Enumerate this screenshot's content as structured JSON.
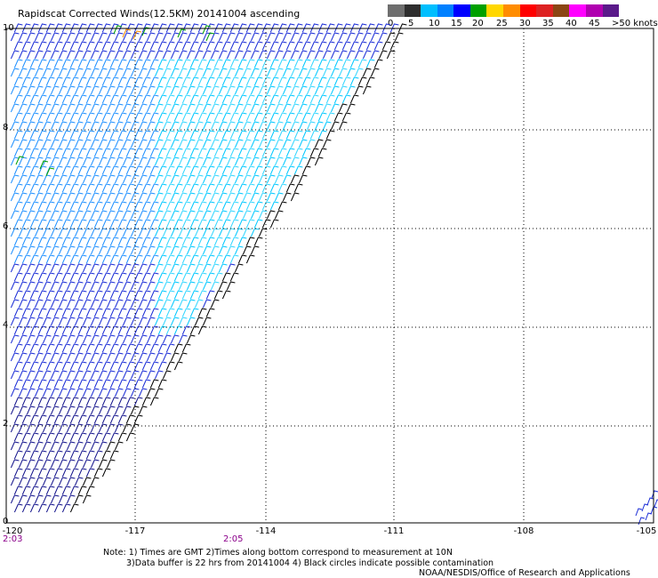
{
  "title": "Rapidscat Corrected Winds(12.5KM) 20141004 ascending",
  "legend": {
    "colors": [
      "#6e6e6e",
      "#2e2e2e",
      "#00bfff",
      "#0080ff",
      "#0000ff",
      "#00a000",
      "#ffd700",
      "#ff8c00",
      "#ff0000",
      "#dd2222",
      "#8b4513",
      "#ff00ff",
      "#b000b0",
      "#5a1a8a"
    ],
    "labels": [
      "0",
      "5",
      "10",
      "15",
      "20",
      "25",
      "30",
      "35",
      "40",
      "45",
      ">50 knots"
    ]
  },
  "x_ticks": [
    "-120",
    "-117",
    "-114",
    "-111",
    "-108",
    "-105"
  ],
  "y_ticks": [
    "10",
    "8",
    "6",
    "4",
    "2",
    "0"
  ],
  "times": [
    "2:03",
    "2:05"
  ],
  "notes": [
    "Note: 1) Times are GMT 2)Times along bottom correspond to measurement at 10N",
    "3)Data buffer is 22 hrs from 20141004 4) Black circles indicate possible contamination",
    "NOAA/NESDIS/Office of Research and Applications"
  ]
}
